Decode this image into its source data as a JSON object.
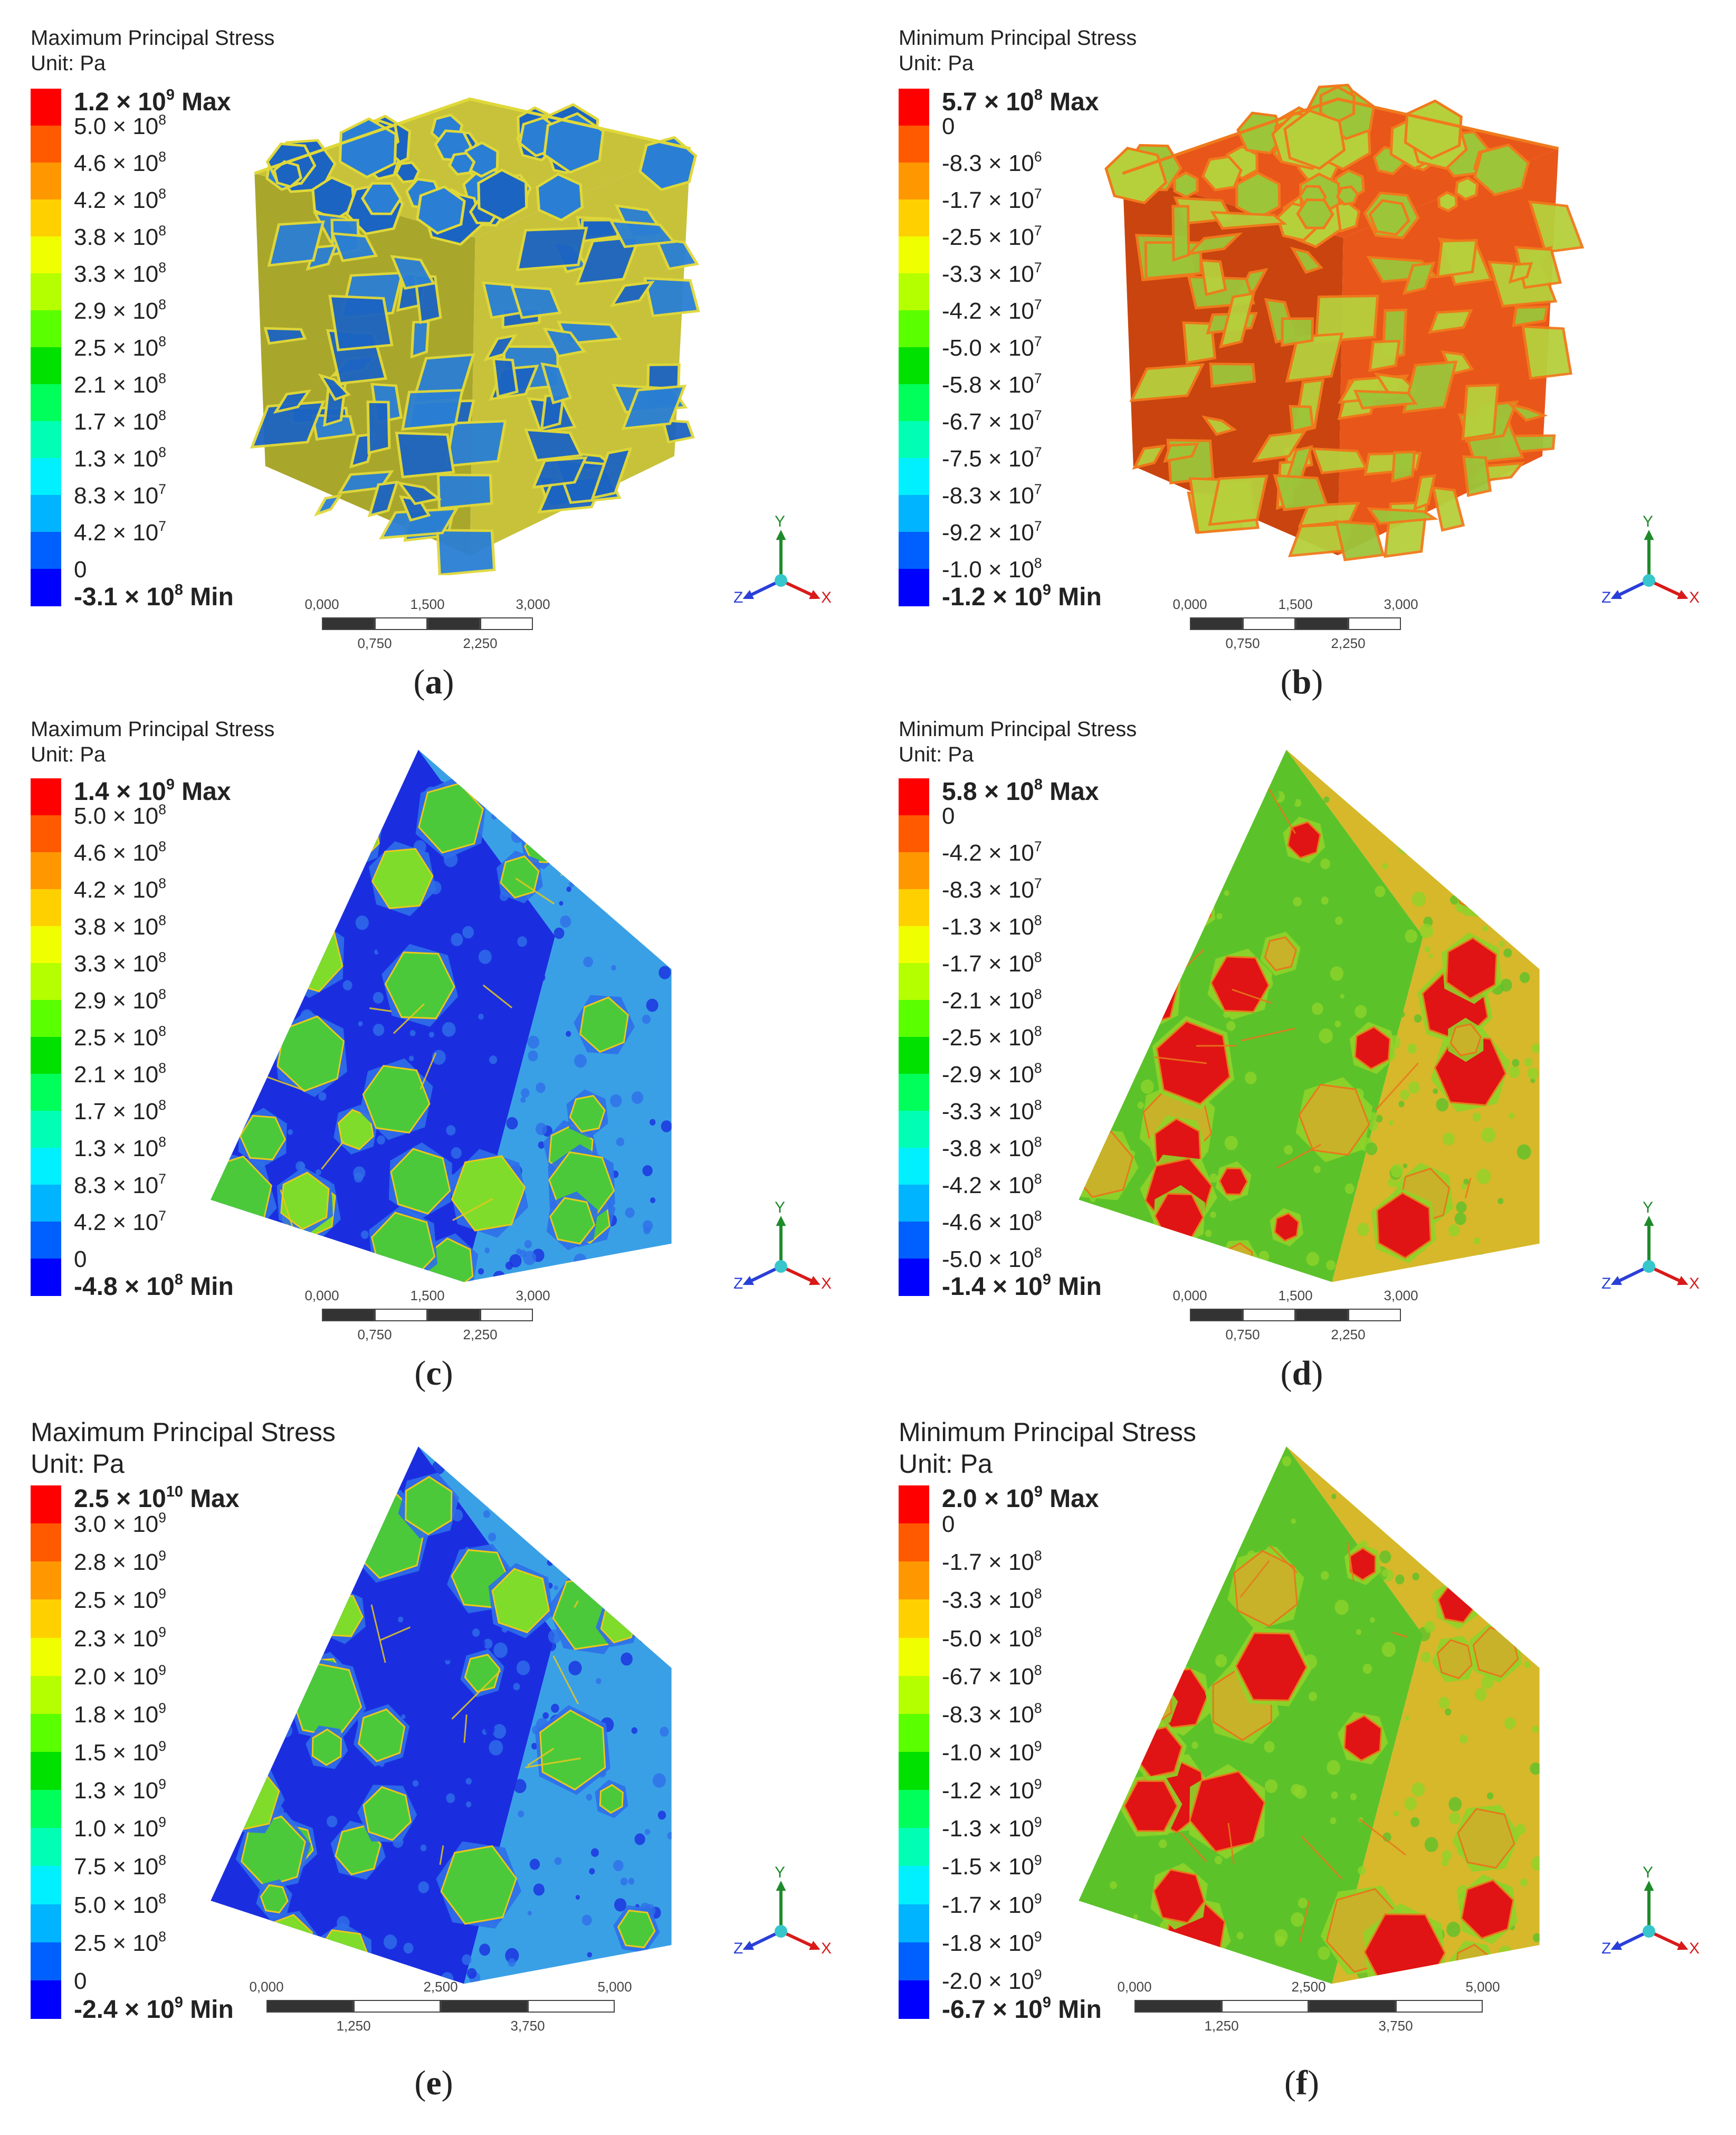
{
  "panels": [
    {
      "id": "a",
      "title": "Maximum Principal Stress",
      "unit": "Unit: Pa",
      "legend": [
        "1.2 × 10⁹ Max",
        "5.0 × 10⁸",
        "4.6 × 10⁸",
        "4.2 × 10⁸",
        "3.8 × 10⁸",
        "3.3 × 10⁸",
        "2.9 × 10⁸",
        "2.5 × 10⁸",
        "2.1 × 10⁸",
        "1.7 × 10⁸",
        "1.3 × 10⁸",
        "8.3 × 10⁷",
        "4.2 × 10⁷",
        "0",
        "-3.1 × 10⁸ Min"
      ],
      "scale": [
        "0,000",
        "0,750",
        "1,500",
        "2,250",
        "3,000"
      ],
      "caption_letter": "a",
      "view": "cube"
    },
    {
      "id": "b",
      "title": "Minimum Principal Stress",
      "unit": "Unit: Pa",
      "legend": [
        "5.7 × 10⁸ Max",
        "0",
        "-8.3 × 10⁶",
        "-1.7 × 10⁷",
        "-2.5 × 10⁷",
        "-3.3 × 10⁷",
        "-4.2 × 10⁷",
        "-5.0 × 10⁷",
        "-5.8 × 10⁷",
        "-6.7 × 10⁷",
        "-7.5 × 10⁷",
        "-8.3 × 10⁷",
        "-9.2 × 10⁷",
        "-1.0 × 10⁸",
        "-1.2 × 10⁹ Min"
      ],
      "scale": [
        "0,000",
        "0,750",
        "1,500",
        "2,250",
        "3,000"
      ],
      "caption_letter": "b",
      "view": "cube"
    },
    {
      "id": "c",
      "title": "Maximum Principal Stress",
      "unit": "Unit: Pa",
      "legend": [
        "1.4 × 10⁹ Max",
        "5.0 × 10⁸",
        "4.6 × 10⁸",
        "4.2 × 10⁸",
        "3.8 × 10⁸",
        "3.3 × 10⁸",
        "2.9 × 10⁸",
        "2.5 × 10⁸",
        "2.1 × 10⁸",
        "1.7 × 10⁸",
        "1.3 × 10⁸",
        "8.3 × 10⁷",
        "4.2 × 10⁷",
        "0",
        "-4.8 × 10⁸ Min"
      ],
      "scale": [
        "0,000",
        "0,750",
        "1,500",
        "2,250",
        "3,000"
      ],
      "caption_letter": "c",
      "view": "section"
    },
    {
      "id": "d",
      "title": "Minimum Principal Stress",
      "unit": "Unit: Pa",
      "legend": [
        "5.8 × 10⁸ Max",
        "0",
        "-4.2 × 10⁷",
        "-8.3 × 10⁷",
        "-1.3 × 10⁸",
        "-1.7 × 10⁸",
        "-2.1 × 10⁸",
        "-2.5 × 10⁸",
        "-2.9 × 10⁸",
        "-3.3 × 10⁸",
        "-3.8 × 10⁸",
        "-4.2 × 10⁸",
        "-4.6 × 10⁸",
        "-5.0 × 10⁸",
        "-1.4 × 10⁹ Min"
      ],
      "scale": [
        "0,000",
        "0,750",
        "1,500",
        "2,250",
        "3,000"
      ],
      "caption_letter": "d",
      "view": "section"
    },
    {
      "id": "e",
      "title": "Maximum Principal Stress",
      "unit": "Unit: Pa",
      "legend": [
        "2.5 × 10¹⁰ Max",
        "3.0 × 10⁹",
        "2.8 × 10⁹",
        "2.5 × 10⁹",
        "2.3 × 10⁹",
        "2.0 × 10⁹",
        "1.8 × 10⁹",
        "1.5 × 10⁹",
        "1.3 × 10⁹",
        "1.0 × 10⁹",
        "7.5 × 10⁸",
        "5.0 × 10⁸",
        "2.5 × 10⁸",
        "0",
        "-2.4 × 10⁹ Min"
      ],
      "scale": [
        "0,000",
        "1,250",
        "2,500",
        "3,750",
        "5,000"
      ],
      "caption_letter": "e",
      "view": "section"
    },
    {
      "id": "f",
      "title": "Minimum Principal Stress",
      "unit": "Unit: Pa",
      "legend": [
        "2.0 × 10⁹ Max",
        "0",
        "-1.7 × 10⁸",
        "-3.3 × 10⁸",
        "-5.0 × 10⁸",
        "-6.7 × 10⁸",
        "-8.3 × 10⁸",
        "-1.0 × 10⁹",
        "-1.2 × 10⁹",
        "-1.3 × 10⁹",
        "-1.5 × 10⁹",
        "-1.7 × 10⁹",
        "-1.8 × 10⁹",
        "-2.0 × 10⁹",
        "-6.7 × 10⁹ Min"
      ],
      "scale": [
        "0,000",
        "1,250",
        "2,500",
        "3,750",
        "5,000"
      ],
      "caption_letter": "f",
      "view": "section"
    }
  ],
  "legend_colors": [
    "#ff0000",
    "#ff5a00",
    "#ff9800",
    "#ffd000",
    "#f0ff00",
    "#b4ff00",
    "#5aff00",
    "#00e100",
    "#00ff5a",
    "#00ffb4",
    "#00f0ff",
    "#00b4ff",
    "#0060ff",
    "#0000ff"
  ],
  "axis_labels": {
    "x": "X",
    "y": "Y",
    "z": "Z"
  }
}
